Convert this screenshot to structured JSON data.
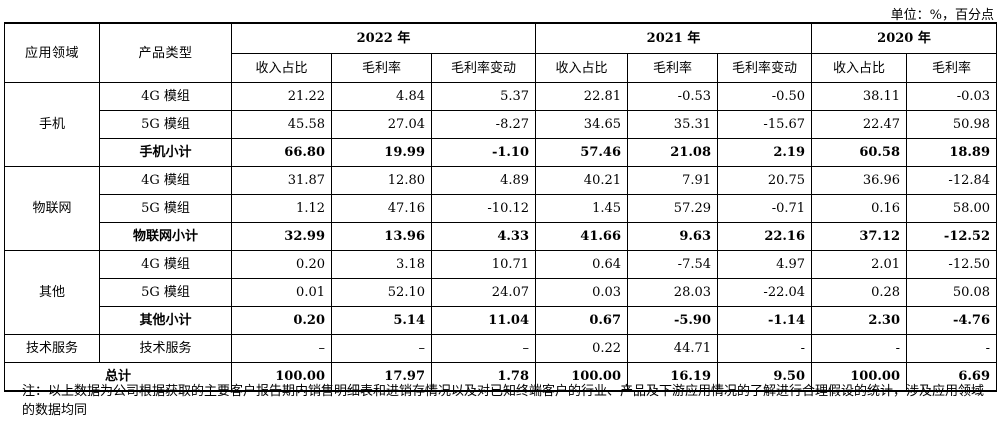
{
  "unit": "单位：%，百分点",
  "headers": {
    "field": "应用领域",
    "type": "产品类型",
    "years": [
      "2022 年",
      "2021 年",
      "2020 年"
    ],
    "rev": "收入占比",
    "margin": "毛利率",
    "change": "毛利率变动"
  },
  "rows": [
    {
      "type": "4G 模组",
      "v": [
        "21.22",
        "4.84",
        "5.37",
        "22.81",
        "-0.53",
        "-0.50",
        "38.11",
        "-0.03"
      ]
    },
    {
      "type": "5G 模组",
      "v": [
        "45.58",
        "27.04",
        "-8.27",
        "34.65",
        "35.31",
        "-15.67",
        "22.47",
        "50.98"
      ]
    },
    {
      "type": "手机小计",
      "v": [
        "66.80",
        "19.99",
        "-1.10",
        "57.46",
        "21.08",
        "2.19",
        "60.58",
        "18.89"
      ]
    },
    {
      "type": "4G 模组",
      "v": [
        "31.87",
        "12.80",
        "4.89",
        "40.21",
        "7.91",
        "20.75",
        "36.96",
        "-12.84"
      ]
    },
    {
      "type": "5G 模组",
      "v": [
        "1.12",
        "47.16",
        "-10.12",
        "1.45",
        "57.29",
        "-0.71",
        "0.16",
        "58.00"
      ]
    },
    {
      "type": "物联网小计",
      "v": [
        "32.99",
        "13.96",
        "4.33",
        "41.66",
        "9.63",
        "22.16",
        "37.12",
        "-12.52"
      ]
    },
    {
      "type": "4G 模组",
      "v": [
        "0.20",
        "3.18",
        "10.71",
        "0.64",
        "-7.54",
        "4.97",
        "2.01",
        "-12.50"
      ]
    },
    {
      "type": "5G 模组",
      "v": [
        "0.01",
        "52.10",
        "24.07",
        "0.03",
        "28.03",
        "-22.04",
        "0.28",
        "50.08"
      ]
    },
    {
      "type": "其他小计",
      "v": [
        "0.20",
        "5.14",
        "11.04",
        "0.67",
        "-5.90",
        "-1.14",
        "2.30",
        "-4.76"
      ]
    },
    {
      "field": "技术服务",
      "type": "技术服务",
      "v": [
        "–",
        "–",
        "–",
        "0.22",
        "44.71",
        "-",
        "-",
        "-"
      ]
    },
    {
      "field": "总计",
      "v": [
        "100.00",
        "17.97",
        "1.78",
        "100.00",
        "16.19",
        "9.50",
        "100.00",
        "6.69"
      ]
    }
  ],
  "groups": [
    "手机",
    "物联网",
    "其他"
  ],
  "note": "注：以上数据为公司根据获取的主要客户报告期内销售明细表和进销存情况以及对已知终端客户的行业、产品及下游应用情况的了解进行合理假设的统计，涉及应用领域的数据均同"
}
